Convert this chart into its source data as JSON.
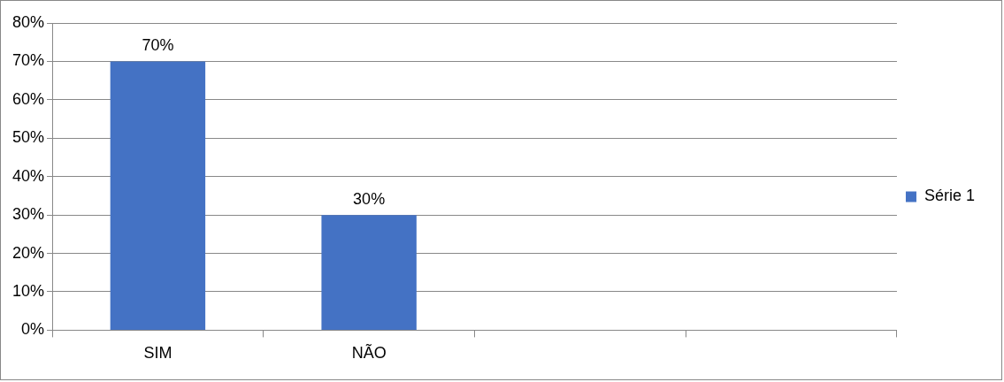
{
  "chart_data": {
    "type": "bar",
    "categories": [
      "SIM",
      "NÃO",
      null,
      null
    ],
    "series": [
      {
        "name": "Série 1",
        "color": "#4472c4",
        "values": [
          70,
          30,
          null,
          null
        ]
      }
    ],
    "value_labels": [
      "70%",
      "30%",
      null,
      null
    ],
    "ylim": [
      0,
      80
    ],
    "yticks": [
      {
        "value": 0,
        "label": "0%"
      },
      {
        "value": 10,
        "label": "10%"
      },
      {
        "value": 20,
        "label": "20%"
      },
      {
        "value": 30,
        "label": "30%"
      },
      {
        "value": 40,
        "label": "40%"
      },
      {
        "value": 50,
        "label": "50%"
      },
      {
        "value": 60,
        "label": "60%"
      },
      {
        "value": 70,
        "label": "70%"
      },
      {
        "value": 80,
        "label": "80%"
      }
    ],
    "grid": "y",
    "legend": "right"
  }
}
